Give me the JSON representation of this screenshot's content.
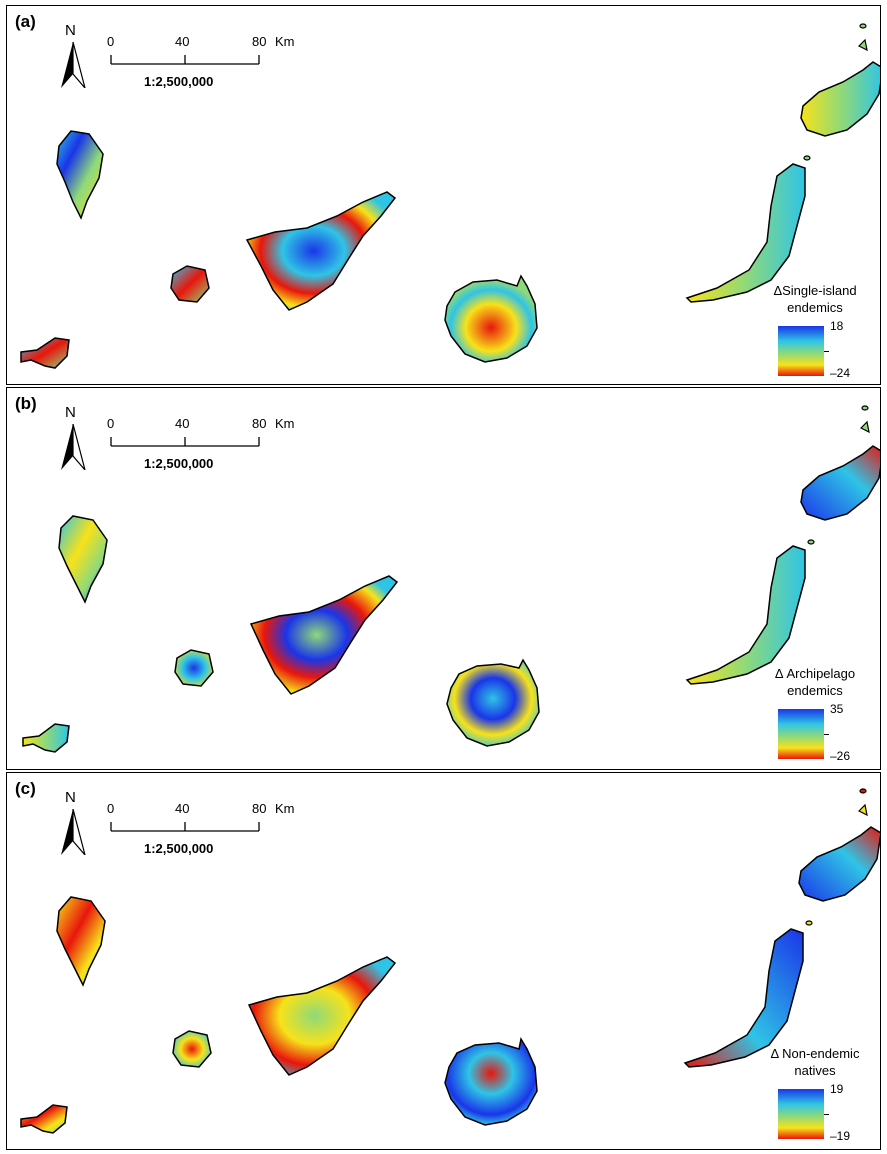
{
  "scale": {
    "ticks": [
      "0",
      "40",
      "80"
    ],
    "unit": "Km",
    "ratio": "1:2,500,000"
  },
  "north_label": "N",
  "panels": [
    {
      "label": "(a)",
      "legend_title_1": "ΔSingle-island",
      "legend_title_2": "endemics",
      "legend_max": "18",
      "legend_min": "–24"
    },
    {
      "label": "(b)",
      "legend_title_1": "Δ Archipelago",
      "legend_title_2": "endemics",
      "legend_max": "35",
      "legend_min": "–26"
    },
    {
      "label": "(c)",
      "legend_title_1": "Δ Non-endemic",
      "legend_title_2": "natives",
      "legend_max": "19",
      "legend_min": "–19"
    }
  ],
  "colors": {
    "low": "#e8160c",
    "mid_low": "#f7e21a",
    "mid": "#8fd97a",
    "mid_high": "#2fc4e6",
    "high": "#1a35e8"
  }
}
